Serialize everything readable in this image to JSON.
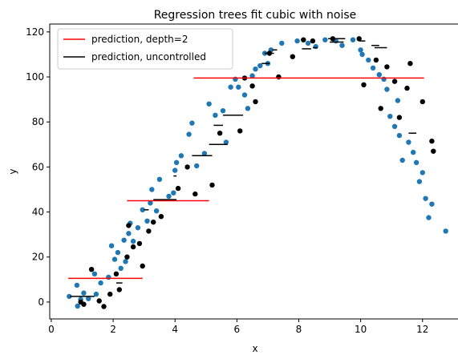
{
  "chart_data": {
    "type": "scatter",
    "title": "Regression trees fit cubic with noise",
    "xlabel": "x",
    "ylabel": "y",
    "xlim": [
      -0.05,
      13.25
    ],
    "ylim": [
      -7.5,
      123.5
    ],
    "xticks": [
      0,
      2,
      4,
      6,
      8,
      10,
      12
    ],
    "yticks": [
      0,
      20,
      40,
      60,
      80,
      100,
      120
    ],
    "grid": false,
    "legend_position": "top-left",
    "legend": [
      {
        "label": "prediction, depth=2",
        "color": "#ff0000"
      },
      {
        "label": "prediction, uncontrolled",
        "color": "#000000"
      }
    ],
    "colors": {
      "train": "#1f77b4",
      "test": "#000000"
    },
    "series": [
      {
        "role": "train",
        "color": "#1f77b4",
        "points": [
          [
            0.58,
            2.5
          ],
          [
            0.83,
            7.5
          ],
          [
            0.85,
            -1.8
          ],
          [
            0.95,
            1.2
          ],
          [
            1.05,
            4.0
          ],
          [
            1.2,
            1.5
          ],
          [
            1.4,
            12.5
          ],
          [
            1.45,
            3.5
          ],
          [
            1.6,
            8.5
          ],
          [
            1.85,
            11.0
          ],
          [
            1.95,
            25.0
          ],
          [
            2.05,
            19.0
          ],
          [
            2.15,
            22.0
          ],
          [
            2.25,
            15.0
          ],
          [
            2.35,
            27.5
          ],
          [
            2.4,
            18.0
          ],
          [
            2.5,
            30.5
          ],
          [
            2.55,
            35.0
          ],
          [
            2.65,
            27.0
          ],
          [
            2.8,
            33.0
          ],
          [
            2.95,
            41.0
          ],
          [
            3.1,
            36.0
          ],
          [
            3.2,
            44.0
          ],
          [
            3.25,
            50.0
          ],
          [
            3.4,
            40.5
          ],
          [
            3.5,
            54.5
          ],
          [
            3.8,
            47.0
          ],
          [
            3.95,
            48.5
          ],
          [
            4.0,
            58.5
          ],
          [
            4.05,
            62.0
          ],
          [
            4.2,
            65.0
          ],
          [
            4.45,
            74.5
          ],
          [
            4.55,
            79.5
          ],
          [
            4.7,
            60.5
          ],
          [
            4.95,
            66.0
          ],
          [
            5.1,
            88.0
          ],
          [
            5.3,
            83.0
          ],
          [
            5.55,
            85.0
          ],
          [
            5.65,
            71.0
          ],
          [
            5.8,
            95.5
          ],
          [
            5.95,
            99.0
          ],
          [
            6.05,
            95.5
          ],
          [
            6.25,
            92.0
          ],
          [
            6.35,
            86.0
          ],
          [
            6.5,
            100.5
          ],
          [
            6.6,
            103.5
          ],
          [
            6.75,
            105.0
          ],
          [
            6.9,
            110.5
          ],
          [
            7.0,
            106.0
          ],
          [
            7.1,
            112.0
          ],
          [
            7.45,
            115.0
          ],
          [
            7.95,
            116.0
          ],
          [
            8.3,
            115.0
          ],
          [
            8.55,
            113.5
          ],
          [
            8.85,
            116.5
          ],
          [
            9.2,
            116.0
          ],
          [
            9.4,
            114.0
          ],
          [
            9.75,
            116.5
          ],
          [
            10.0,
            112.0
          ],
          [
            10.05,
            110.0
          ],
          [
            10.25,
            107.5
          ],
          [
            10.4,
            104.0
          ],
          [
            10.6,
            101.0
          ],
          [
            10.75,
            99.0
          ],
          [
            10.85,
            94.5
          ],
          [
            10.95,
            82.5
          ],
          [
            11.1,
            78.0
          ],
          [
            11.2,
            89.5
          ],
          [
            11.25,
            74.0
          ],
          [
            11.35,
            63.0
          ],
          [
            11.55,
            71.0
          ],
          [
            11.7,
            66.5
          ],
          [
            11.8,
            62.0
          ],
          [
            11.9,
            53.5
          ],
          [
            12.0,
            57.5
          ],
          [
            12.1,
            46.0
          ],
          [
            12.2,
            37.5
          ],
          [
            12.3,
            43.5
          ],
          [
            12.75,
            31.5
          ]
        ]
      },
      {
        "role": "test",
        "color": "#000000",
        "points": [
          [
            0.95,
            0.0
          ],
          [
            1.05,
            -1.0
          ],
          [
            1.3,
            14.5
          ],
          [
            1.55,
            0.5
          ],
          [
            1.7,
            -2.0
          ],
          [
            1.9,
            3.5
          ],
          [
            2.1,
            12.5
          ],
          [
            2.2,
            5.5
          ],
          [
            2.45,
            20.0
          ],
          [
            2.5,
            34.0
          ],
          [
            2.65,
            24.5
          ],
          [
            2.85,
            26.0
          ],
          [
            2.95,
            16.0
          ],
          [
            3.15,
            31.5
          ],
          [
            3.3,
            35.5
          ],
          [
            3.55,
            38.0
          ],
          [
            4.1,
            50.5
          ],
          [
            4.4,
            60.0
          ],
          [
            4.65,
            48.0
          ],
          [
            5.2,
            52.0
          ],
          [
            5.45,
            75.0
          ],
          [
            6.1,
            76.0
          ],
          [
            6.25,
            99.5
          ],
          [
            6.5,
            96.0
          ],
          [
            6.6,
            89.0
          ],
          [
            7.05,
            110.5
          ],
          [
            7.35,
            100.0
          ],
          [
            7.8,
            109.0
          ],
          [
            8.15,
            116.5
          ],
          [
            8.45,
            116.0
          ],
          [
            9.1,
            117.0
          ],
          [
            9.95,
            117.0
          ],
          [
            10.1,
            96.5
          ],
          [
            10.5,
            107.5
          ],
          [
            10.65,
            86.0
          ],
          [
            10.85,
            104.5
          ],
          [
            11.1,
            98.0
          ],
          [
            11.25,
            82.0
          ],
          [
            11.5,
            95.0
          ],
          [
            11.6,
            106.0
          ],
          [
            12.0,
            89.0
          ],
          [
            12.3,
            71.5
          ],
          [
            12.35,
            67.0
          ]
        ]
      },
      {
        "name": "prediction, depth=2",
        "role": "step",
        "color": "#ff0000",
        "segments": [
          [
            0.55,
            2.95,
            10.5
          ],
          [
            2.45,
            5.1,
            45.0
          ],
          [
            4.6,
            12.05,
            99.5
          ]
        ]
      },
      {
        "name": "prediction, uncontrolled",
        "role": "step",
        "color": "#000000",
        "segments": [
          [
            0.6,
            1.4,
            2.5
          ],
          [
            2.1,
            2.3,
            8.5
          ],
          [
            3.0,
            3.15,
            41.0
          ],
          [
            3.3,
            4.05,
            45.5
          ],
          [
            3.95,
            4.05,
            56.0
          ],
          [
            4.55,
            5.2,
            65.0
          ],
          [
            5.1,
            5.7,
            70.0
          ],
          [
            5.25,
            5.55,
            78.5
          ],
          [
            5.55,
            6.2,
            83.0
          ],
          [
            6.8,
            7.05,
            106.0
          ],
          [
            6.9,
            7.2,
            110.5
          ],
          [
            7.15,
            7.3,
            112.0
          ],
          [
            8.1,
            8.4,
            112.5
          ],
          [
            8.45,
            8.6,
            113.0
          ],
          [
            8.95,
            9.5,
            117.0
          ],
          [
            9.0,
            9.45,
            115.5
          ],
          [
            9.95,
            10.15,
            116.0
          ],
          [
            10.35,
            10.6,
            114.0
          ],
          [
            10.45,
            10.85,
            113.0
          ],
          [
            11.55,
            11.8,
            75.0
          ]
        ]
      }
    ]
  }
}
